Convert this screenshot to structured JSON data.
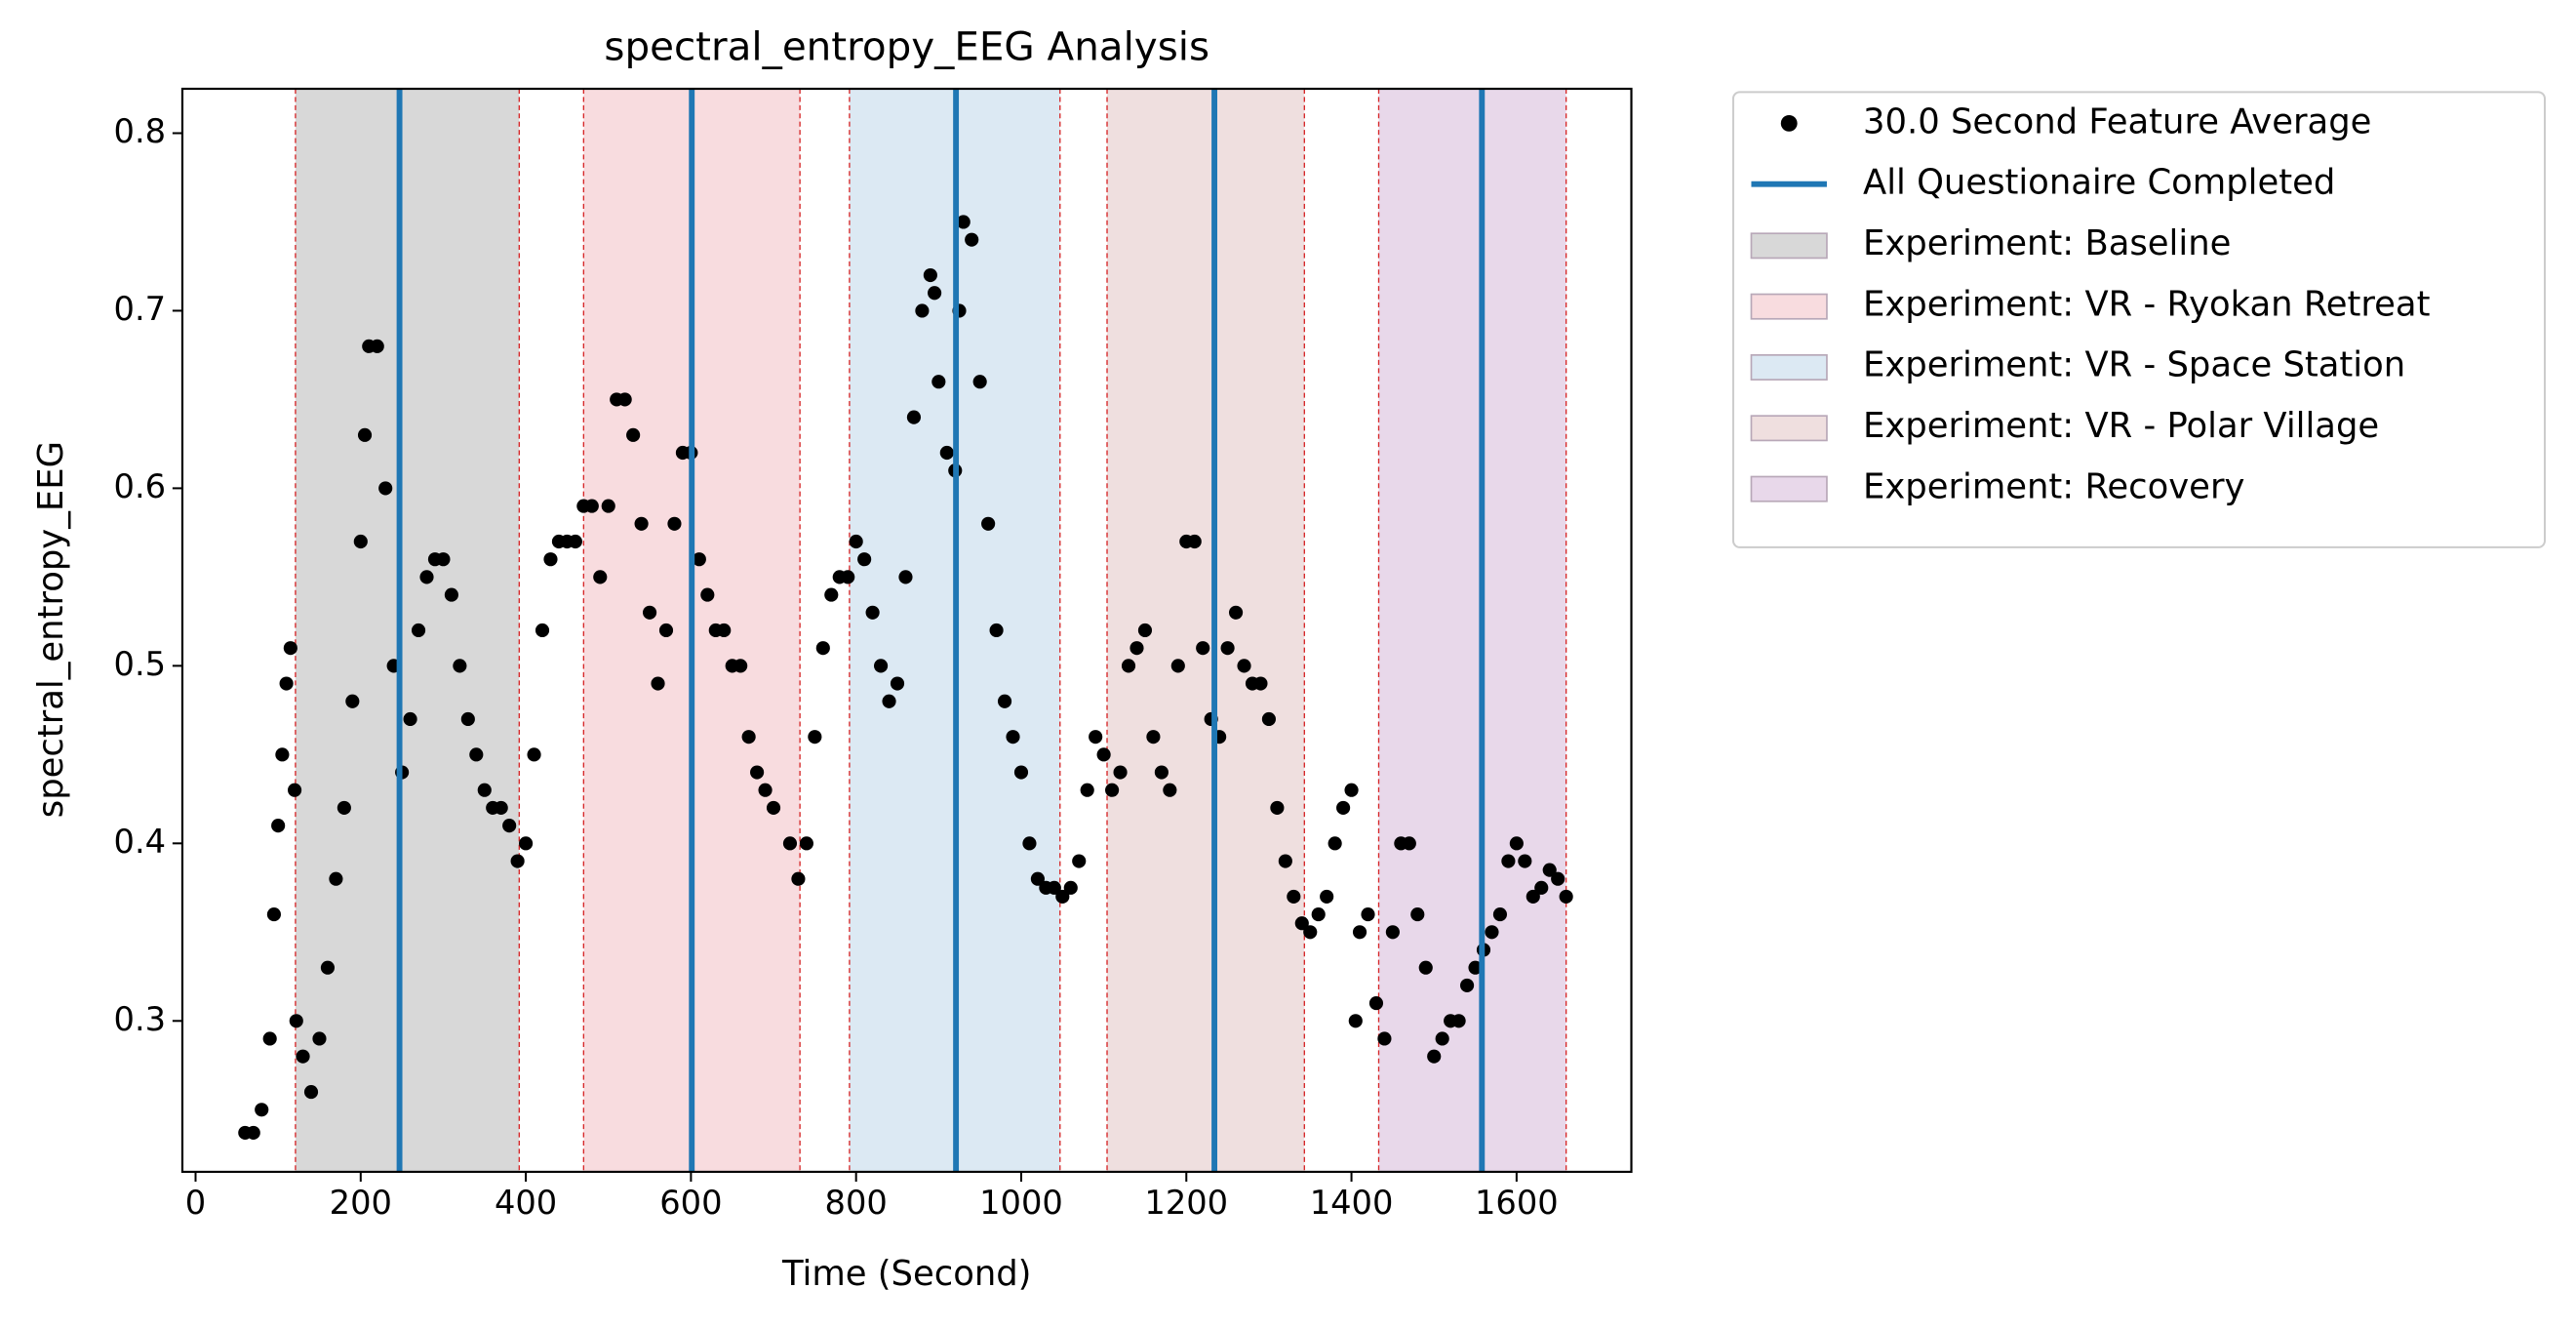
{
  "chart_data": {
    "type": "scatter",
    "title": "spectral_entropy_EEG Analysis",
    "x_label": "Time (Second)",
    "y_label": "spectral_entropy_EEG",
    "xlim": [
      -16,
      1739
    ],
    "ylim": [
      0.215,
      0.825
    ],
    "xticks": [
      0,
      200,
      400,
      600,
      800,
      1000,
      1200,
      1400,
      1600
    ],
    "yticks": [
      0.3,
      0.4,
      0.5,
      0.6,
      0.7,
      0.8
    ],
    "series": [
      {
        "name": "30.0 Second Feature Average",
        "color": "#000000",
        "x": [
          60,
          70,
          80,
          90,
          95,
          100,
          105,
          110,
          115,
          120,
          122,
          130,
          140,
          150,
          160,
          170,
          180,
          190,
          200,
          205,
          210,
          220,
          230,
          240,
          250,
          260,
          270,
          280,
          290,
          300,
          310,
          320,
          330,
          340,
          350,
          360,
          370,
          380,
          390,
          400,
          410,
          420,
          430,
          440,
          450,
          460,
          470,
          480,
          490,
          500,
          510,
          520,
          530,
          540,
          550,
          560,
          570,
          580,
          590,
          600,
          610,
          620,
          630,
          640,
          650,
          660,
          670,
          680,
          690,
          700,
          720,
          730,
          740,
          750,
          760,
          770,
          780,
          790,
          800,
          810,
          820,
          830,
          840,
          850,
          860,
          870,
          880,
          890,
          895,
          900,
          910,
          920,
          925,
          930,
          940,
          950,
          960,
          970,
          980,
          990,
          1000,
          1010,
          1020,
          1030,
          1040,
          1050,
          1060,
          1070,
          1080,
          1090,
          1100,
          1110,
          1120,
          1130,
          1140,
          1150,
          1160,
          1170,
          1180,
          1190,
          1200,
          1210,
          1220,
          1230,
          1240,
          1250,
          1260,
          1270,
          1280,
          1290,
          1300,
          1310,
          1320,
          1330,
          1340,
          1350,
          1360,
          1370,
          1380,
          1390,
          1400,
          1405,
          1410,
          1420,
          1430,
          1440,
          1450,
          1460,
          1470,
          1480,
          1490,
          1500,
          1510,
          1520,
          1530,
          1540,
          1550,
          1560,
          1570,
          1580,
          1590,
          1600,
          1610,
          1620,
          1630,
          1640,
          1650,
          1660
        ],
        "values": [
          0.237,
          0.237,
          0.25,
          0.29,
          0.36,
          0.41,
          0.45,
          0.49,
          0.51,
          0.43,
          0.3,
          0.28,
          0.26,
          0.29,
          0.33,
          0.38,
          0.42,
          0.48,
          0.57,
          0.63,
          0.68,
          0.68,
          0.6,
          0.5,
          0.44,
          0.47,
          0.52,
          0.55,
          0.56,
          0.56,
          0.54,
          0.5,
          0.47,
          0.45,
          0.43,
          0.42,
          0.42,
          0.41,
          0.39,
          0.4,
          0.45,
          0.52,
          0.56,
          0.57,
          0.57,
          0.57,
          0.59,
          0.59,
          0.55,
          0.59,
          0.65,
          0.65,
          0.63,
          0.58,
          0.53,
          0.49,
          0.52,
          0.58,
          0.62,
          0.62,
          0.56,
          0.54,
          0.52,
          0.52,
          0.5,
          0.5,
          0.46,
          0.44,
          0.43,
          0.42,
          0.4,
          0.38,
          0.4,
          0.46,
          0.51,
          0.54,
          0.55,
          0.55,
          0.57,
          0.56,
          0.53,
          0.5,
          0.48,
          0.49,
          0.55,
          0.64,
          0.7,
          0.72,
          0.71,
          0.66,
          0.62,
          0.61,
          0.7,
          0.75,
          0.74,
          0.66,
          0.58,
          0.52,
          0.48,
          0.46,
          0.44,
          0.4,
          0.38,
          0.375,
          0.375,
          0.37,
          0.375,
          0.39,
          0.43,
          0.46,
          0.45,
          0.43,
          0.44,
          0.5,
          0.51,
          0.52,
          0.46,
          0.44,
          0.43,
          0.5,
          0.57,
          0.57,
          0.51,
          0.47,
          0.46,
          0.51,
          0.53,
          0.5,
          0.49,
          0.49,
          0.47,
          0.42,
          0.39,
          0.37,
          0.355,
          0.35,
          0.36,
          0.37,
          0.4,
          0.42,
          0.43,
          0.3,
          0.35,
          0.36,
          0.31,
          0.29,
          0.35,
          0.4,
          0.4,
          0.36,
          0.33,
          0.28,
          0.29,
          0.3,
          0.3,
          0.32,
          0.33,
          0.34,
          0.35,
          0.36,
          0.39,
          0.4,
          0.39,
          0.37,
          0.375,
          0.385,
          0.38,
          0.37
        ]
      }
    ],
    "vlines": {
      "name": "All Questionaire Completed",
      "color": "#1f77b4",
      "x": [
        247,
        601,
        921,
        1234,
        1558
      ]
    },
    "spans": [
      {
        "name": "Experiment: Baseline",
        "color": "#d8d8d8",
        "start": 121,
        "end": 392
      },
      {
        "name": "Experiment: VR - Ryokan Retreat",
        "color": "#f8dcdf",
        "start": 470,
        "end": 732
      },
      {
        "name": "Experiment: VR - Space Station",
        "color": "#dce9f3",
        "start": 792,
        "end": 1047
      },
      {
        "name": "Experiment: VR - Polar Village",
        "color": "#efdfdf",
        "start": 1104,
        "end": 1343
      },
      {
        "name": "Experiment: Recovery",
        "color": "#e8d8ea",
        "start": 1433,
        "end": 1660
      }
    ],
    "legend_position": "outside-right"
  }
}
